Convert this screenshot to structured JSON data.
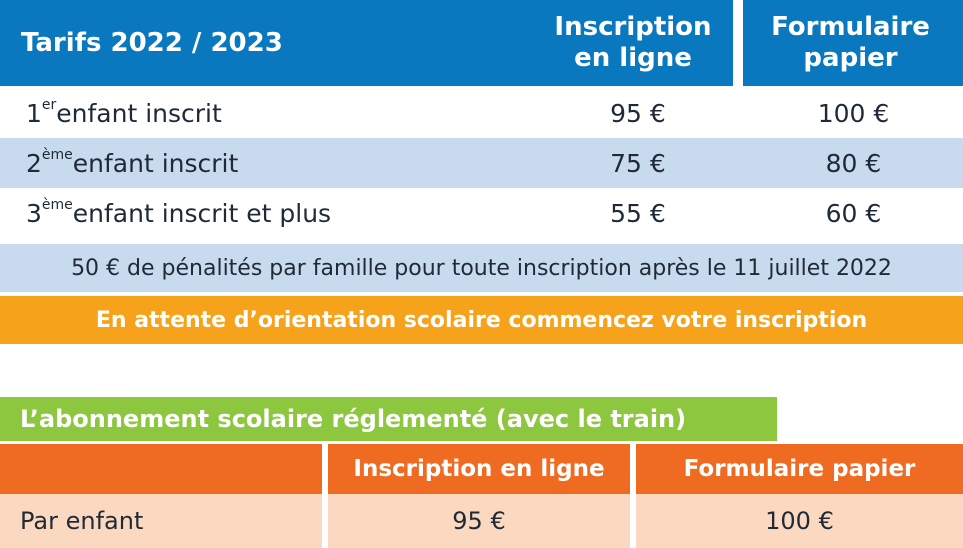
{
  "table1": {
    "title": "Tarifs 2022 / 2023",
    "col1": "Inscription en ligne",
    "col2": "Formulaire papier",
    "rows": [
      {
        "num": "1",
        "sup": "er",
        "label": " enfant inscrit",
        "online": "95 €",
        "paper": "100 €"
      },
      {
        "num": "2",
        "sup": "ème",
        "label": " enfant inscrit",
        "online": "75 €",
        "paper": "80 €"
      },
      {
        "num": "3",
        "sup": "ème",
        "label": " enfant inscrit et plus",
        "online": "55 €",
        "paper": "60 €"
      }
    ],
    "penalty": "50 € de pénalités par famille pour toute inscription après le 11 juillet 2022",
    "orientation": "En attente d’orientation scolaire commencez votre inscription"
  },
  "table2": {
    "title": "L’abonnement scolaire réglementé (avec le train)",
    "col1": "Inscription en ligne",
    "col2": "Formulaire papier",
    "row": {
      "label": "Par enfant",
      "online": "95 €",
      "paper": "100 €"
    }
  },
  "colors": {
    "blue_header": "#0a78be",
    "light_blue_row": "#c8daee",
    "orange_bar": "#f7a21b",
    "green_title": "#8dc63f",
    "orange_header": "#f06b22",
    "peach_row": "#fbd8c0"
  }
}
